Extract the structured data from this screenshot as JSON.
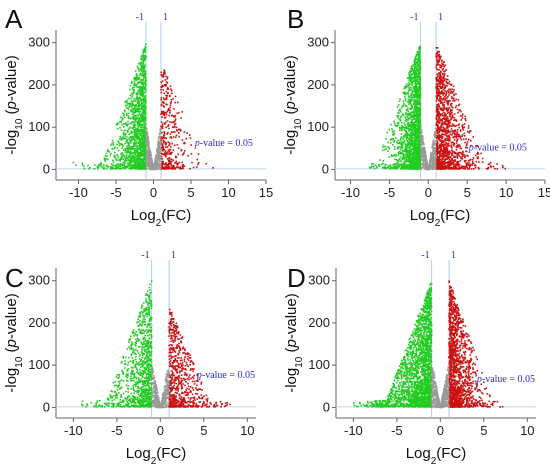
{
  "colors": {
    "down": "#22cc22",
    "up": "#cc1111",
    "ns": "#9a9a9a",
    "threshold_lines": "#a9c8e8",
    "annotation": "#2b2bd6"
  },
  "chart_data": [
    {
      "type": "scatter",
      "panel_label": "A",
      "xlabel_base": "Log",
      "xlabel_sub": "2",
      "xlabel_tail": "(FC)",
      "ylabel_pre": "-log",
      "ylabel_sub": "10",
      "ylabel_italic": "p",
      "ylabel_tail": "-value)",
      "xlim": [
        -13,
        15
      ],
      "ylim": [
        -25,
        330
      ],
      "xticks": [
        -10,
        -5,
        0,
        5,
        10,
        15
      ],
      "yticks": [
        0,
        100,
        200,
        300
      ],
      "threshold_x": [
        -1,
        1
      ],
      "threshold_labels": [
        "-1",
        "1"
      ],
      "annotation": "p-value = 0.05",
      "annotation_italic": "p",
      "annotation_rest": "-value = 0.05",
      "annotation_pos": [
        5.5,
        55
      ],
      "down": {
        "n": 1500,
        "x_spread": 1.4,
        "x_max_left": -11,
        "y_max": 300
      },
      "up": {
        "n": 380,
        "x_spread": 1.2,
        "x_max_right": 12,
        "y_max": 250
      },
      "ns": {
        "n": 500,
        "y_max": 110
      }
    },
    {
      "type": "scatter",
      "panel_label": "B",
      "xlabel_base": "Log",
      "xlabel_sub": "2",
      "xlabel_tail": "(FC)",
      "ylabel_pre": "-log",
      "ylabel_sub": "10",
      "ylabel_italic": "p",
      "ylabel_tail": "-value)",
      "xlim": [
        -12,
        15
      ],
      "ylim": [
        -25,
        330
      ],
      "xticks": [
        -10,
        -5,
        0,
        5,
        10,
        15
      ],
      "yticks": [
        0,
        100,
        200,
        300
      ],
      "threshold_x": [
        -1,
        1
      ],
      "threshold_labels": [
        "-1",
        "1"
      ],
      "annotation": "p-value = 0.05",
      "annotation_italic": "p",
      "annotation_rest": "-value = 0.05",
      "annotation_pos": [
        5.2,
        45
      ],
      "down": {
        "n": 1800,
        "x_spread": 1.1,
        "x_max_left": -11,
        "y_max": 300
      },
      "up": {
        "n": 1300,
        "x_spread": 1.4,
        "x_max_right": 12,
        "y_max": 300
      },
      "ns": {
        "n": 500,
        "y_max": 110
      }
    },
    {
      "type": "scatter",
      "panel_label": "C",
      "xlabel_base": "Log",
      "xlabel_sub": "2",
      "xlabel_tail": "(FC)",
      "ylabel_pre": "-log",
      "ylabel_sub": "10",
      "ylabel_italic": "p",
      "ylabel_tail": "-value)",
      "xlim": [
        -12,
        11
      ],
      "ylim": [
        -25,
        330
      ],
      "xticks": [
        -10,
        -5,
        0,
        5,
        10
      ],
      "yticks": [
        0,
        100,
        200,
        300
      ],
      "threshold_x": [
        -1,
        1
      ],
      "threshold_labels": [
        "-1",
        "1"
      ],
      "annotation": "p-value = 0.05",
      "annotation_italic": "p",
      "annotation_rest": "-value = 0.05",
      "annotation_pos": [
        4.2,
        70
      ],
      "down": {
        "n": 1000,
        "x_spread": 1.5,
        "x_max_left": -10,
        "y_max": 300
      },
      "up": {
        "n": 700,
        "x_spread": 1.5,
        "x_max_right": 9,
        "y_max": 240
      },
      "ns": {
        "n": 450,
        "y_max": 110
      }
    },
    {
      "type": "scatter",
      "panel_label": "D",
      "xlabel_base": "Log",
      "xlabel_sub": "2",
      "xlabel_tail": "(FC)",
      "ylabel_pre": "-log",
      "ylabel_sub": "10",
      "ylabel_italic": "p",
      "ylabel_tail": "-value)",
      "xlim": [
        -12,
        11
      ],
      "ylim": [
        -25,
        330
      ],
      "xticks": [
        -10,
        -5,
        0,
        5,
        10
      ],
      "yticks": [
        0,
        100,
        200,
        300
      ],
      "threshold_x": [
        -1,
        1
      ],
      "threshold_labels": [
        "-1",
        "1"
      ],
      "annotation": "p-value = 0.05",
      "annotation_italic": "p",
      "annotation_rest": "-value = 0.05",
      "annotation_pos": [
        4.2,
        60
      ],
      "down": {
        "n": 2200,
        "x_spread": 1.8,
        "x_max_left": -10,
        "y_max": 300
      },
      "up": {
        "n": 1500,
        "x_spread": 1.0,
        "x_max_right": 9.5,
        "y_max": 300
      },
      "ns": {
        "n": 550,
        "y_max": 110
      }
    }
  ]
}
